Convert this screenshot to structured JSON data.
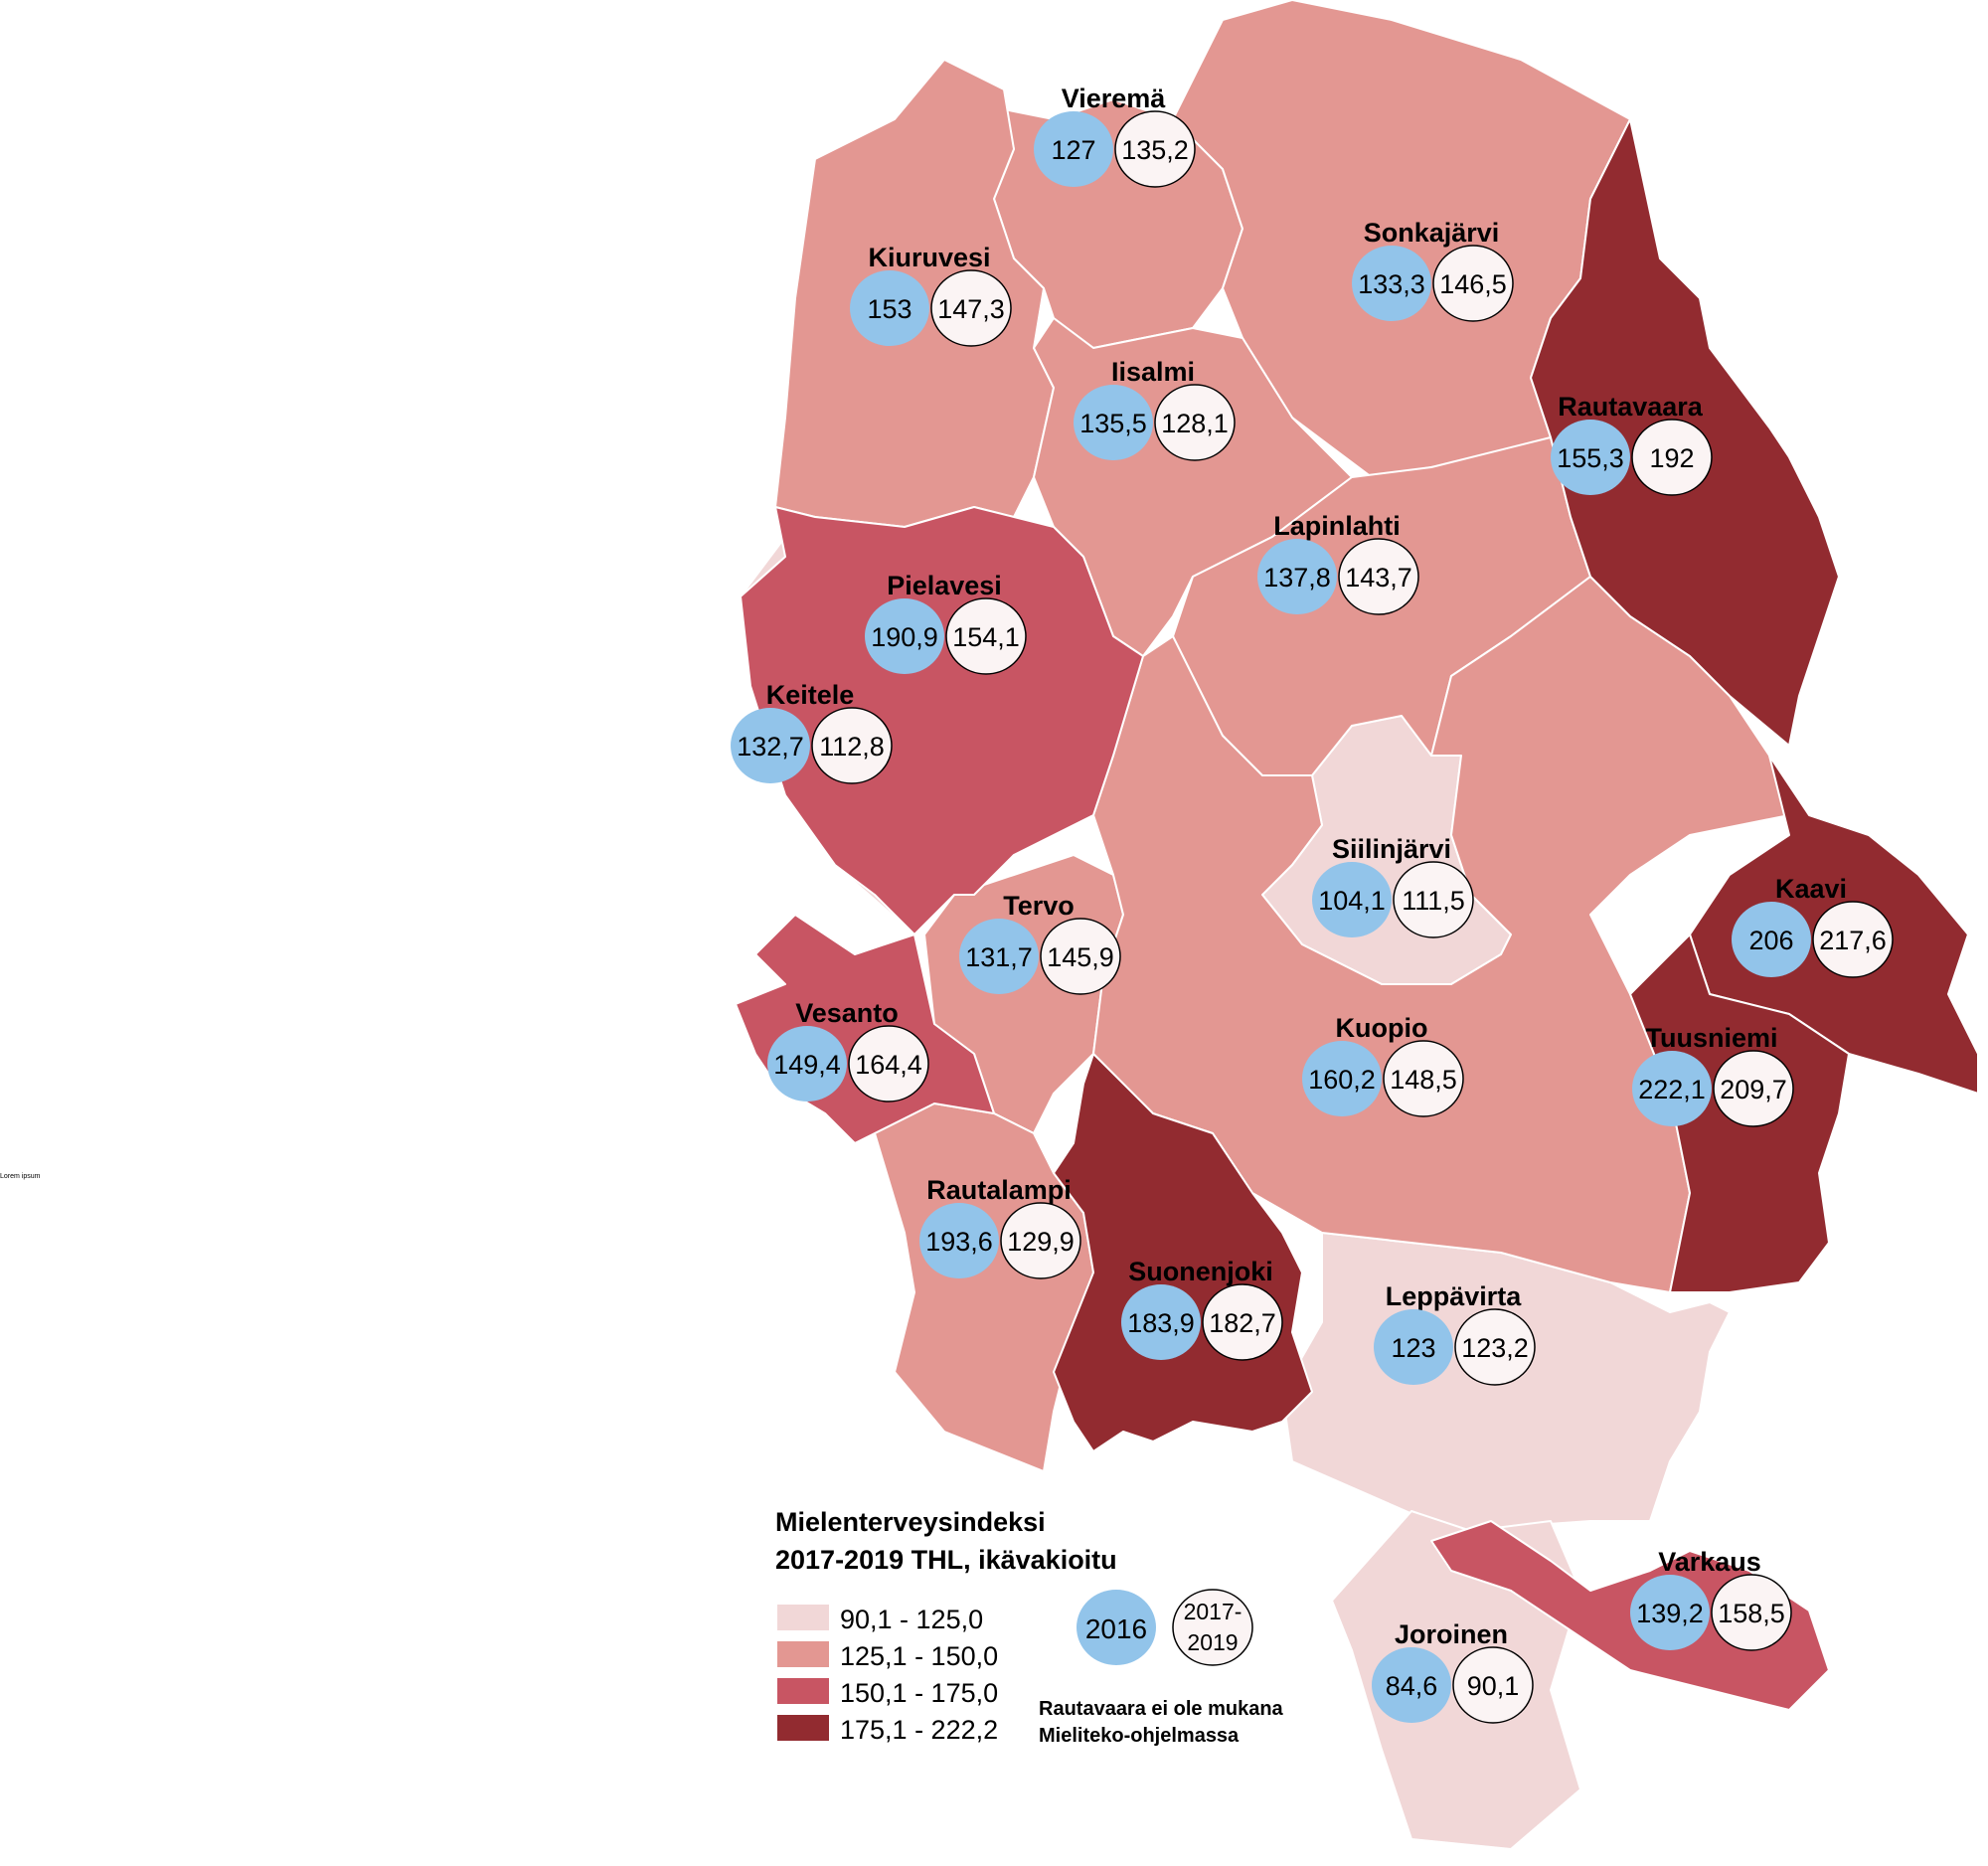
{
  "corner_text": "Lorem ipsum",
  "legend": {
    "title_line1": "Mielenterveysindeksi",
    "title_line2": "2017-2019 THL, ikävakioitu",
    "classes": [
      {
        "label": "90,1 - 125,0",
        "color": "#f1d7d7"
      },
      {
        "label": "125,1 - 150,0",
        "color": "#e39792"
      },
      {
        "label": "150,1 - 175,0",
        "color": "#c85563"
      },
      {
        "label": "175,1 - 222,2",
        "color": "#922b30"
      }
    ],
    "key_blue": "2016",
    "key_white_line1": "2017-",
    "key_white_line2": "2019",
    "note_line1": "Rautavaara ei ole mukana",
    "note_line2": "Mieliteko-ohjelmassa"
  },
  "colors": {
    "blue_circle": "#92c4ea",
    "white_circle": "#fbf4f4",
    "border": "#ffffff"
  },
  "municipalities": [
    {
      "name": "Vieremä",
      "v2016": "127",
      "v2017_2019": "135,2",
      "class": 1
    },
    {
      "name": "Kiuruvesi",
      "v2016": "153",
      "v2017_2019": "147,3",
      "class": 1
    },
    {
      "name": "Sonkajärvi",
      "v2016": "133,3",
      "v2017_2019": "146,5",
      "class": 1
    },
    {
      "name": "Iisalmi",
      "v2016": "135,5",
      "v2017_2019": "128,1",
      "class": 1
    },
    {
      "name": "Rautavaara",
      "v2016": "155,3",
      "v2017_2019": "192",
      "class": 3
    },
    {
      "name": "Lapinlahti",
      "v2016": "137,8",
      "v2017_2019": "143,7",
      "class": 1
    },
    {
      "name": "Pielavesi",
      "v2016": "190,9",
      "v2017_2019": "154,1",
      "class": 2
    },
    {
      "name": "Keitele",
      "v2016": "132,7",
      "v2017_2019": "112,8",
      "class": 0
    },
    {
      "name": "Siilinjärvi",
      "v2016": "104,1",
      "v2017_2019": "111,5",
      "class": 0
    },
    {
      "name": "Kaavi",
      "v2016": "206",
      "v2017_2019": "217,6",
      "class": 3
    },
    {
      "name": "Tervo",
      "v2016": "131,7",
      "v2017_2019": "145,9",
      "class": 1
    },
    {
      "name": "Vesanto",
      "v2016": "149,4",
      "v2017_2019": "164,4",
      "class": 2
    },
    {
      "name": "Kuopio",
      "v2016": "160,2",
      "v2017_2019": "148,5",
      "class": 1
    },
    {
      "name": "Tuusniemi",
      "v2016": "222,1",
      "v2017_2019": "209,7",
      "class": 3
    },
    {
      "name": "Rautalampi",
      "v2016": "193,6",
      "v2017_2019": "129,9",
      "class": 1
    },
    {
      "name": "Suonenjoki",
      "v2016": "183,9",
      "v2017_2019": "182,7",
      "class": 3
    },
    {
      "name": "Leppävirta",
      "v2016": "123",
      "v2017_2019": "123,2",
      "class": 0
    },
    {
      "name": "Varkaus",
      "v2016": "139,2",
      "v2017_2019": "158,5",
      "class": 2
    },
    {
      "name": "Joroinen",
      "v2016": "84,6",
      "v2017_2019": "90,1",
      "class": 0
    }
  ]
}
